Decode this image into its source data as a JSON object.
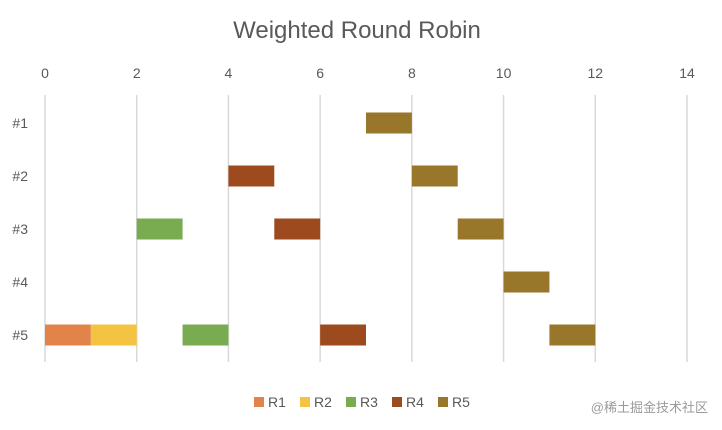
{
  "chart_data": {
    "type": "bar",
    "orientation": "horizontal",
    "stacked": true,
    "title": "Weighted Round Robin",
    "xlabel": "",
    "ylabel": "",
    "xlim": [
      0,
      14
    ],
    "x_ticks": [
      "0",
      "2",
      "4",
      "6",
      "8",
      "10",
      "12",
      "14"
    ],
    "categories": [
      "#1",
      "#2",
      "#3",
      "#4",
      "#5"
    ],
    "grid": true,
    "legend_position": "bottom",
    "series": [
      {
        "name": "R1",
        "color": "#E2844A",
        "segments": [
          {
            "category": "#5",
            "start": 0,
            "end": 1
          }
        ]
      },
      {
        "name": "R2",
        "color": "#F5C342",
        "segments": [
          {
            "category": "#5",
            "start": 1,
            "end": 2
          }
        ]
      },
      {
        "name": "R3",
        "color": "#79AB50",
        "segments": [
          {
            "category": "#3",
            "start": 2,
            "end": 3
          },
          {
            "category": "#5",
            "start": 3,
            "end": 4
          }
        ]
      },
      {
        "name": "R4",
        "color": "#9E4A1F",
        "segments": [
          {
            "category": "#2",
            "start": 4,
            "end": 5
          },
          {
            "category": "#3",
            "start": 5,
            "end": 6
          },
          {
            "category": "#5",
            "start": 6,
            "end": 7
          }
        ]
      },
      {
        "name": "R5",
        "color": "#98762A",
        "segments": [
          {
            "category": "#1",
            "start": 7,
            "end": 8
          },
          {
            "category": "#2",
            "start": 8,
            "end": 9
          },
          {
            "category": "#3",
            "start": 9,
            "end": 10
          },
          {
            "category": "#4",
            "start": 10,
            "end": 11
          },
          {
            "category": "#5",
            "start": 11,
            "end": 12
          }
        ]
      }
    ]
  },
  "watermark": "@稀土掘金技术社区"
}
